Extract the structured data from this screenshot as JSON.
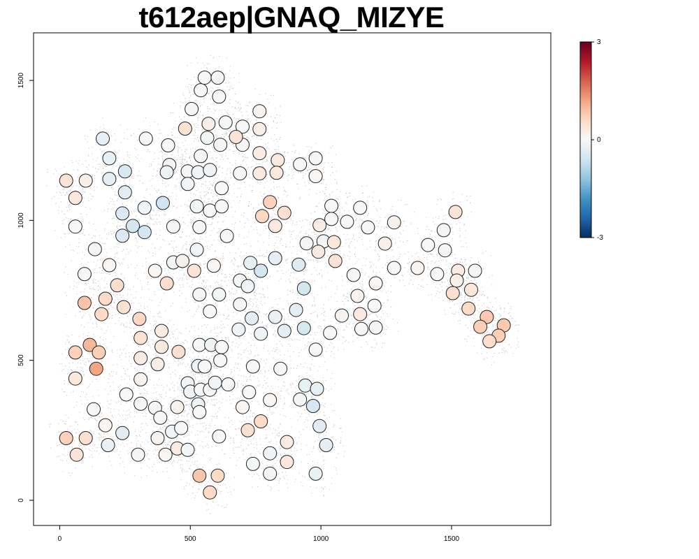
{
  "chart_data": {
    "type": "scatter",
    "title": "t612aep|GNAQ_MIZYE",
    "xlabel": "",
    "ylabel": "",
    "xlim": [
      -100,
      1880
    ],
    "ylim": [
      -90,
      1670
    ],
    "x_ticks": [
      0,
      500,
      1000,
      1500
    ],
    "y_ticks": [
      0,
      500,
      1000,
      1500
    ],
    "grid": false,
    "background_colors": {
      "cell_dot": "#c0c0c0",
      "spot_border": "#222222"
    },
    "colorbar": {
      "position": "right",
      "min": -3,
      "max": 3,
      "ticks": [
        3,
        0,
        -3
      ],
      "colors": [
        "#053061",
        "#2166ac",
        "#4393c3",
        "#92c5de",
        "#d1e5f0",
        "#f7f7f7",
        "#fddbc7",
        "#f4a582",
        "#d6604d",
        "#b2182b",
        "#67001f"
      ]
    },
    "spots": [
      [
        25,
        1142,
        0.4
      ],
      [
        60,
        1080,
        0.35
      ],
      [
        100,
        1142,
        0.2
      ],
      [
        60,
        978,
        0.0
      ],
      [
        165,
        1292,
        -0.25
      ],
      [
        190,
        1222,
        -0.25
      ],
      [
        190,
        1148,
        -0.3
      ],
      [
        250,
        1175,
        -0.5
      ],
      [
        250,
        1100,
        -0.35
      ],
      [
        330,
        1292,
        0.0
      ],
      [
        415,
        1268,
        0.0
      ],
      [
        420,
        1198,
        -0.05
      ],
      [
        410,
        1172,
        -0.15
      ],
      [
        505,
        1398,
        -0.05
      ],
      [
        540,
        1465,
        0.0
      ],
      [
        555,
        1510,
        0.0
      ],
      [
        605,
        1510,
        -0.05
      ],
      [
        610,
        1442,
        0.0
      ],
      [
        570,
        1345,
        0.2
      ],
      [
        565,
        1295,
        -0.05
      ],
      [
        615,
        1270,
        -0.05
      ],
      [
        635,
        1350,
        0.0
      ],
      [
        480,
        1328,
        0.45
      ],
      [
        700,
        1335,
        0.0
      ],
      [
        700,
        1270,
        0.05
      ],
      [
        675,
        1298,
        0.4
      ],
      [
        765,
        1390,
        0.1
      ],
      [
        765,
        1326,
        0.2
      ],
      [
        540,
        1230,
        -0.05
      ],
      [
        490,
        1175,
        -0.05
      ],
      [
        530,
        1172,
        -0.1
      ],
      [
        575,
        1180,
        -0.15
      ],
      [
        490,
        1130,
        -0.1
      ],
      [
        690,
        1168,
        0.0
      ],
      [
        765,
        1240,
        0.25
      ],
      [
        765,
        1168,
        0.3
      ],
      [
        835,
        1215,
        0.3
      ],
      [
        830,
        1170,
        0.3
      ],
      [
        920,
        1200,
        0.0
      ],
      [
        980,
        1222,
        -0.05
      ],
      [
        980,
        1158,
        0.05
      ],
      [
        240,
        1025,
        -0.45
      ],
      [
        325,
        1045,
        -0.1
      ],
      [
        395,
        1062,
        -0.6
      ],
      [
        280,
        980,
        -0.55
      ],
      [
        325,
        958,
        -0.55
      ],
      [
        240,
        945,
        -0.45
      ],
      [
        435,
        978,
        -0.05
      ],
      [
        525,
        1050,
        -0.05
      ],
      [
        575,
        1035,
        0.0
      ],
      [
        620,
        1050,
        0.0
      ],
      [
        620,
        1115,
        0.0
      ],
      [
        535,
        976,
        -0.05
      ],
      [
        640,
        944,
        0.0
      ],
      [
        805,
        1065,
        0.7
      ],
      [
        860,
        1027,
        0.5
      ],
      [
        775,
        1015,
        0.65
      ],
      [
        825,
        980,
        0.3
      ],
      [
        1040,
        1052,
        0.0
      ],
      [
        1150,
        1045,
        0.0
      ],
      [
        1040,
        1005,
        0.0
      ],
      [
        1100,
        995,
        0.0
      ],
      [
        1180,
        975,
        0.0
      ],
      [
        1280,
        993,
        0.15
      ],
      [
        1245,
        917,
        0.15
      ],
      [
        1410,
        912,
        0.0
      ],
      [
        1470,
        965,
        -0.05
      ],
      [
        1515,
        1030,
        0.4
      ],
      [
        995,
        983,
        0.25
      ],
      [
        945,
        918,
        -0.05
      ],
      [
        1010,
        925,
        -0.05
      ],
      [
        990,
        888,
        0.3
      ],
      [
        1050,
        922,
        0.35
      ],
      [
        1055,
        855,
        0.4
      ],
      [
        1125,
        805,
        0.0
      ],
      [
        1210,
        775,
        0.05
      ],
      [
        1280,
        830,
        0.0
      ],
      [
        1370,
        830,
        0.05
      ],
      [
        1475,
        893,
        -0.05
      ],
      [
        1445,
        808,
        0.0
      ],
      [
        1525,
        820,
        0.25
      ],
      [
        1590,
        820,
        -0.05
      ],
      [
        1520,
        785,
        0.15
      ],
      [
        1575,
        752,
        0.35
      ],
      [
        1505,
        740,
        0.5
      ],
      [
        1565,
        685,
        0.6
      ],
      [
        1635,
        655,
        0.8
      ],
      [
        1610,
        620,
        0.75
      ],
      [
        1700,
        625,
        0.8
      ],
      [
        1680,
        588,
        0.75
      ],
      [
        1645,
        568,
        0.55
      ],
      [
        135,
        897,
        -0.05
      ],
      [
        95,
        808,
        0.0
      ],
      [
        190,
        840,
        0.05
      ],
      [
        220,
        768,
        0.55
      ],
      [
        95,
        705,
        0.85
      ],
      [
        175,
        720,
        0.6
      ],
      [
        160,
        665,
        0.6
      ],
      [
        245,
        690,
        0.45
      ],
      [
        365,
        820,
        0.05
      ],
      [
        435,
        850,
        -0.05
      ],
      [
        470,
        855,
        0.15
      ],
      [
        515,
        820,
        0.4
      ],
      [
        525,
        895,
        -0.1
      ],
      [
        590,
        838,
        0.05
      ],
      [
        410,
        775,
        0.55
      ],
      [
        535,
        735,
        -0.05
      ],
      [
        610,
        735,
        -0.05
      ],
      [
        575,
        675,
        0.0
      ],
      [
        690,
        785,
        -0.05
      ],
      [
        720,
        765,
        -0.1
      ],
      [
        730,
        848,
        -0.25
      ],
      [
        770,
        820,
        -0.55
      ],
      [
        825,
        865,
        -0.3
      ],
      [
        915,
        842,
        -0.4
      ],
      [
        935,
        757,
        -0.55
      ],
      [
        690,
        700,
        -0.05
      ],
      [
        735,
        650,
        -0.3
      ],
      [
        685,
        610,
        -0.1
      ],
      [
        770,
        595,
        -0.15
      ],
      [
        825,
        655,
        -0.2
      ],
      [
        860,
        605,
        -0.3
      ],
      [
        905,
        680,
        -0.3
      ],
      [
        935,
        615,
        -0.5
      ],
      [
        1080,
        660,
        0.1
      ],
      [
        1150,
        665,
        0.3
      ],
      [
        1140,
        730,
        0.1
      ],
      [
        1205,
        695,
        0.0
      ],
      [
        1155,
        612,
        0.0
      ],
      [
        1210,
        617,
        -0.05
      ],
      [
        1035,
        598,
        0.0
      ],
      [
        980,
        538,
        0.0
      ],
      [
        305,
        648,
        0.65
      ],
      [
        310,
        580,
        0.45
      ],
      [
        390,
        605,
        0.25
      ],
      [
        390,
        548,
        0.3
      ],
      [
        310,
        508,
        0.25
      ],
      [
        375,
        486,
        0.2
      ],
      [
        455,
        530,
        0.5
      ],
      [
        535,
        555,
        0.0
      ],
      [
        580,
        555,
        -0.15
      ],
      [
        620,
        547,
        0.0
      ],
      [
        530,
        480,
        -0.15
      ],
      [
        555,
        478,
        0.0
      ],
      [
        615,
        500,
        0.0
      ],
      [
        60,
        528,
        0.7
      ],
      [
        115,
        555,
        1.0
      ],
      [
        150,
        528,
        0.75
      ],
      [
        140,
        470,
        1.2
      ],
      [
        60,
        435,
        0.35
      ],
      [
        255,
        378,
        0.0
      ],
      [
        310,
        432,
        0.1
      ],
      [
        310,
        345,
        -0.05
      ],
      [
        365,
        330,
        -0.05
      ],
      [
        385,
        295,
        0.0
      ],
      [
        450,
        333,
        0.1
      ],
      [
        490,
        418,
        -0.1
      ],
      [
        500,
        388,
        -0.1
      ],
      [
        540,
        395,
        0.0
      ],
      [
        575,
        395,
        0.0
      ],
      [
        595,
        420,
        -0.1
      ],
      [
        645,
        414,
        0.0
      ],
      [
        530,
        343,
        -0.15
      ],
      [
        535,
        315,
        0.0
      ],
      [
        700,
        333,
        0.05
      ],
      [
        725,
        386,
        0.0
      ],
      [
        740,
        478,
        0.0
      ],
      [
        845,
        470,
        0.0
      ],
      [
        805,
        358,
        0.05
      ],
      [
        920,
        360,
        -0.05
      ],
      [
        940,
        410,
        -0.25
      ],
      [
        985,
        398,
        -0.25
      ],
      [
        970,
        337,
        -0.5
      ],
      [
        130,
        325,
        0.0
      ],
      [
        175,
        268,
        0.05
      ],
      [
        240,
        240,
        -0.35
      ],
      [
        185,
        197,
        -0.2
      ],
      [
        25,
        222,
        0.7
      ],
      [
        100,
        222,
        0.5
      ],
      [
        65,
        163,
        0.4
      ],
      [
        300,
        163,
        -0.05
      ],
      [
        375,
        222,
        0.1
      ],
      [
        430,
        245,
        -0.1
      ],
      [
        465,
        258,
        0.0
      ],
      [
        405,
        163,
        0.05
      ],
      [
        450,
        185,
        0.25
      ],
      [
        490,
        180,
        -0.05
      ],
      [
        610,
        228,
        0.0
      ],
      [
        720,
        250,
        0.5
      ],
      [
        770,
        282,
        0.6
      ],
      [
        740,
        130,
        -0.05
      ],
      [
        805,
        168,
        -0.1
      ],
      [
        805,
        95,
        -0.05
      ],
      [
        870,
        208,
        0.25
      ],
      [
        870,
        137,
        0.35
      ],
      [
        995,
        265,
        -0.35
      ],
      [
        1020,
        197,
        -0.3
      ],
      [
        980,
        95,
        -0.2
      ],
      [
        535,
        88,
        0.85
      ],
      [
        605,
        88,
        0.6
      ],
      [
        575,
        28,
        0.6
      ]
    ]
  }
}
